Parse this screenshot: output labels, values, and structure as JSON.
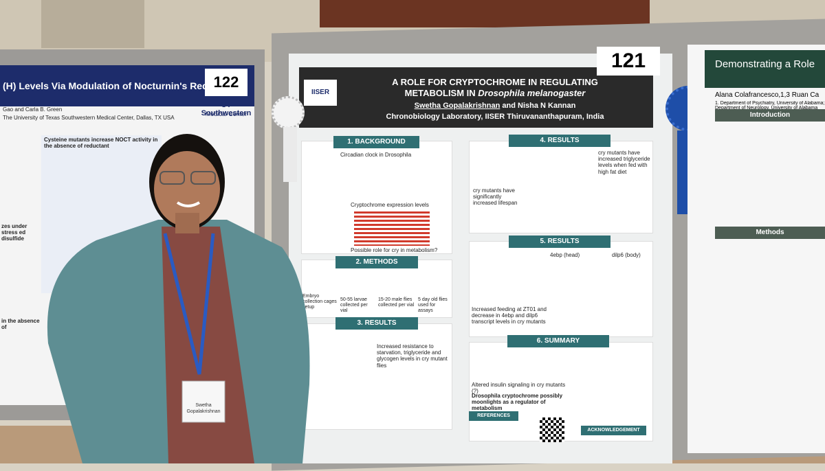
{
  "left_poster": {
    "number": "122",
    "title": "(H) Levels Via Modulation of Nocturnin's Redox-React",
    "authors": "Gao and Carla B. Green",
    "affiliation": "The University of Texas Southwestern Medical Center, Dallas, TX USA",
    "logo": "UT Southwestern",
    "logo_sub": "Medical Center",
    "heading": "Cysteine mutants increase NOCT activity in the absence of reductant",
    "side_heading": "zes under stress ed disulfide",
    "lower_heading": "in the absence of"
  },
  "main_poster": {
    "number": "121",
    "logo": "IISER",
    "title": "A ROLE FOR CRYPTOCHROME IN REGULATING",
    "title_line2": "METABOLISM IN",
    "species": "Drosophila melanogaster",
    "presenter": "Swetha Gopalakrishnan",
    "coauthor": "and Nisha N Kannan",
    "affiliation": "Chronobiology Laboratory, IISER Thiruvananthapuram, India",
    "background": {
      "heading": "1. BACKGROUND",
      "caption1": "Circadian clock in Drosophila",
      "caption2": "Cryptochrome expression levels",
      "caption3": "Possible role for cry in metabolism?"
    },
    "methods": {
      "heading": "2. METHODS",
      "steps": [
        "Embryo collection cages setup",
        "50-55 larvae collected per vial",
        "15-20 male flies collected per vial",
        "5 day old flies used for assays"
      ]
    },
    "results3": {
      "heading": "3. RESULTS",
      "text": "Increased resistance to starvation, triglyceride and glycogen levels in cry mutant flies"
    },
    "results4": {
      "heading": "4. RESULTS",
      "text1": "cry mutants have increased triglyceride levels when fed with high fat diet",
      "text2": "cry mutants have significantly increased lifespan"
    },
    "results5": {
      "heading": "5. RESULTS",
      "panel1": "4ebp (head)",
      "panel2": "dilp6 (body)",
      "text": "Increased feeding at ZT01 and decrease in 4ebp and dilp6 transcript levels in cry mutants"
    },
    "summary": {
      "heading": "6. SUMMARY",
      "text1": "Altered insulin signaling in cry mutants (?)",
      "text2": "Drosophila cryptochrome possibly moonlights as a regulator of metabolism"
    },
    "references": "REFERENCES",
    "acknowledgement": "ACKNOWLEDGEMENT"
  },
  "right_poster": {
    "title": "Demonstrating a Role",
    "authors": "Alana Colafrancesco,1,3 Ruan Ca",
    "affiliation": "1. Department of Psychiatry, University of Alabama; Department of Neurology, University of Alabama",
    "introduction": "Introduction",
    "methods": "Methods"
  },
  "badge": {
    "name": "Swetha",
    "surname": "Gopalakrishnan"
  }
}
